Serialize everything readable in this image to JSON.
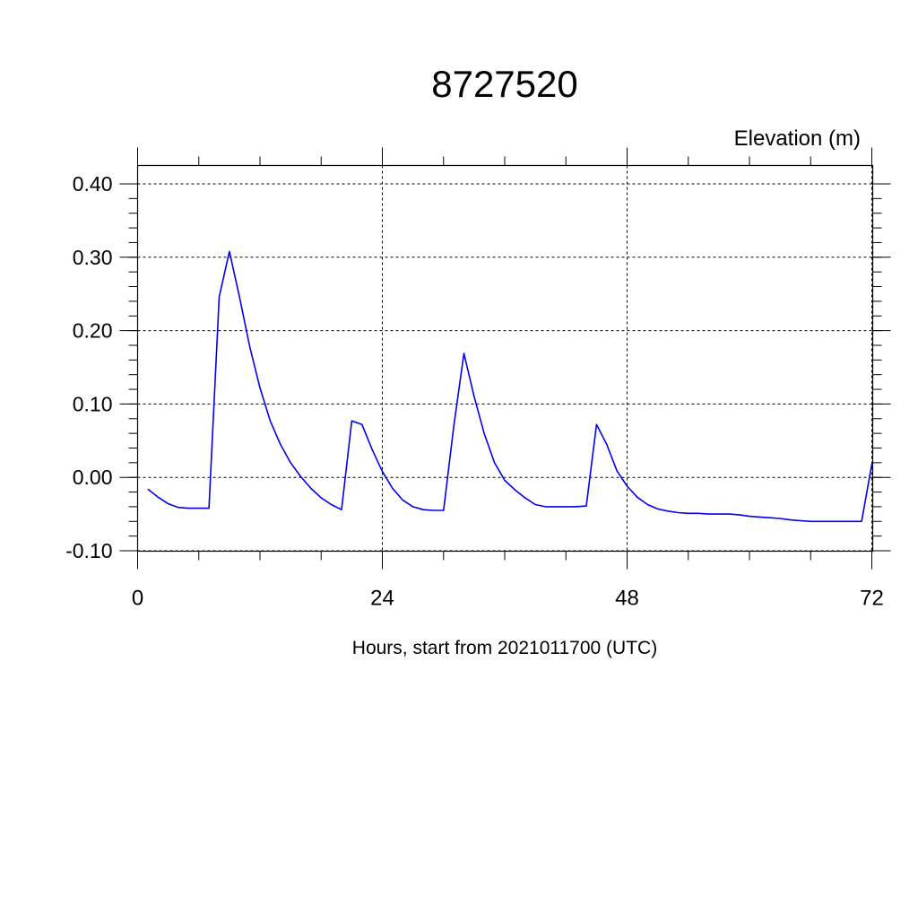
{
  "chart_data": {
    "type": "line",
    "title": "8727520",
    "ylabel": "Elevation (m)",
    "xlabel": "Hours, start from 2021011700 (UTC)",
    "xlim": [
      0,
      72
    ],
    "ylim": [
      -0.1,
      0.4
    ],
    "xticks": [
      0,
      24,
      48,
      72
    ],
    "xtick_labels": [
      "0",
      "24",
      "48",
      "72"
    ],
    "yticks": [
      -0.1,
      0,
      0.1,
      0.2,
      0.3,
      0.4
    ],
    "ytick_labels": [
      "-0.10",
      "0.00",
      "0.10",
      "0.20",
      "0.30",
      "0.40"
    ],
    "grid": true,
    "line_color": "#0000ee",
    "series": [
      {
        "x": [
          1,
          2,
          3,
          4,
          5,
          6,
          7,
          8,
          9,
          10,
          11,
          12,
          13,
          14,
          15,
          16,
          17,
          18,
          19,
          20,
          21,
          22,
          23,
          24,
          25,
          26,
          27,
          28,
          29,
          30,
          31,
          32,
          33,
          34,
          35,
          36,
          37,
          38,
          39,
          40,
          41,
          42,
          43,
          44,
          45,
          46,
          47,
          48,
          49,
          50,
          51,
          52,
          53,
          54,
          55,
          56,
          57,
          58,
          59,
          60,
          61,
          62,
          63,
          64,
          65,
          66,
          67,
          68,
          69,
          70,
          71,
          72
        ],
        "y": [
          -0.016,
          -0.027,
          -0.036,
          -0.041,
          -0.042,
          -0.042,
          -0.042,
          0.246,
          0.308,
          0.245,
          0.178,
          0.122,
          0.077,
          0.045,
          0.02,
          0.001,
          -0.015,
          -0.028,
          -0.037,
          -0.044,
          0.077,
          0.072,
          0.038,
          0.008,
          -0.015,
          -0.031,
          -0.04,
          -0.044,
          -0.045,
          -0.045,
          0.069,
          0.169,
          0.11,
          0.059,
          0.02,
          -0.004,
          -0.017,
          -0.028,
          -0.037,
          -0.04,
          -0.04,
          -0.04,
          -0.04,
          -0.039,
          0.072,
          0.045,
          0.009,
          -0.012,
          -0.027,
          -0.037,
          -0.043,
          -0.046,
          -0.048,
          -0.049,
          -0.049,
          -0.05,
          -0.05,
          -0.05,
          -0.051,
          -0.053,
          -0.054,
          -0.055,
          -0.056,
          -0.058,
          -0.059,
          -0.06,
          -0.06,
          -0.06,
          -0.06,
          -0.06,
          -0.06,
          0.018
        ]
      }
    ]
  }
}
